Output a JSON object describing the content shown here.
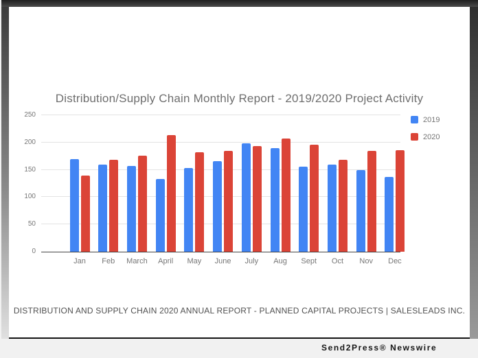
{
  "chart_data": {
    "type": "bar",
    "title": "Distribution/Supply Chain Monthly Report - 2019/2020 Project Activity",
    "categories": [
      "Jan",
      "Feb",
      "March",
      "April",
      "May",
      "June",
      "July",
      "Aug",
      "Sept",
      "Oct",
      "Nov",
      "Dec"
    ],
    "series": [
      {
        "name": "2019",
        "color": "#4285f4",
        "values": [
          170,
          160,
          157,
          133,
          153,
          166,
          198,
          190,
          156,
          160,
          149,
          137
        ]
      },
      {
        "name": "2020",
        "color": "#db4437",
        "values": [
          140,
          168,
          176,
          213,
          182,
          185,
          194,
          207,
          196,
          168,
          185,
          186
        ]
      }
    ],
    "xlabel": "",
    "ylabel": "",
    "ylim": [
      0,
      250
    ],
    "yticks": [
      0,
      50,
      100,
      150,
      200,
      250
    ],
    "grid": true,
    "legend_position": "top-right"
  },
  "page_footer": {
    "text": "DISTRIBUTION AND SUPPLY CHAIN 2020 ANNUAL REPORT - PLANNED CAPITAL PROJECTS | SALESLEADS INC."
  },
  "caption_bar": {
    "text": "Send2Press® Newswire"
  },
  "colors": {
    "series_2019": "#4285f4",
    "series_2020": "#db4437",
    "title_text": "#6e6e6e",
    "axis_text": "#757575",
    "gridline": "#e3e3e3",
    "axis_baseline": "#424242",
    "page_background": "#ffffff",
    "caption_background": "#f1f1f1",
    "frame_dark": "#2f2f2f"
  }
}
